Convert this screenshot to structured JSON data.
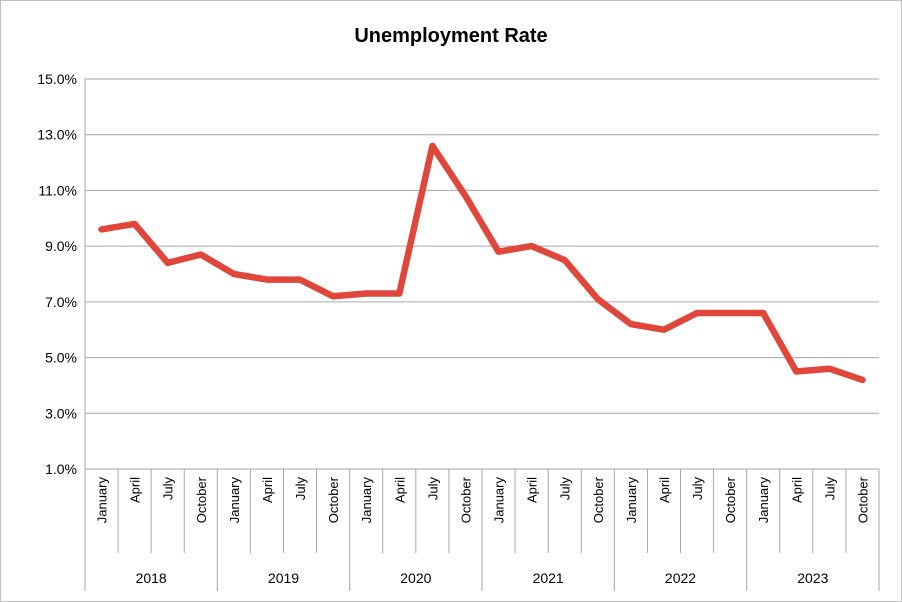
{
  "chart_data": {
    "type": "line",
    "title": "Unemployment Rate",
    "xlabel": "",
    "ylabel": "",
    "ylim": [
      1.0,
      15.0
    ],
    "yticks": [
      "1.0%",
      "3.0%",
      "5.0%",
      "7.0%",
      "9.0%",
      "11.0%",
      "13.0%",
      "15.0%"
    ],
    "grid": true,
    "legend": "none",
    "line_color": "#e0463a",
    "groups": [
      {
        "year": "2018",
        "months": [
          "January",
          "April",
          "July",
          "October"
        ]
      },
      {
        "year": "2019",
        "months": [
          "January",
          "April",
          "July",
          "October"
        ]
      },
      {
        "year": "2020",
        "months": [
          "January",
          "April",
          "July",
          "October"
        ]
      },
      {
        "year": "2021",
        "months": [
          "January",
          "April",
          "July",
          "October"
        ]
      },
      {
        "year": "2022",
        "months": [
          "January",
          "April",
          "July",
          "October"
        ]
      },
      {
        "year": "2023",
        "months": [
          "January",
          "April",
          "July",
          "October"
        ]
      }
    ],
    "series": [
      {
        "values": [
          9.6,
          9.8,
          8.4,
          8.7,
          8.0,
          7.8,
          7.8,
          7.2,
          7.3,
          7.3,
          12.6,
          10.8,
          8.8,
          9.0,
          8.5,
          7.1,
          6.2,
          6.0,
          6.6,
          6.6,
          6.6,
          4.5,
          4.6,
          4.2
        ]
      }
    ]
  }
}
